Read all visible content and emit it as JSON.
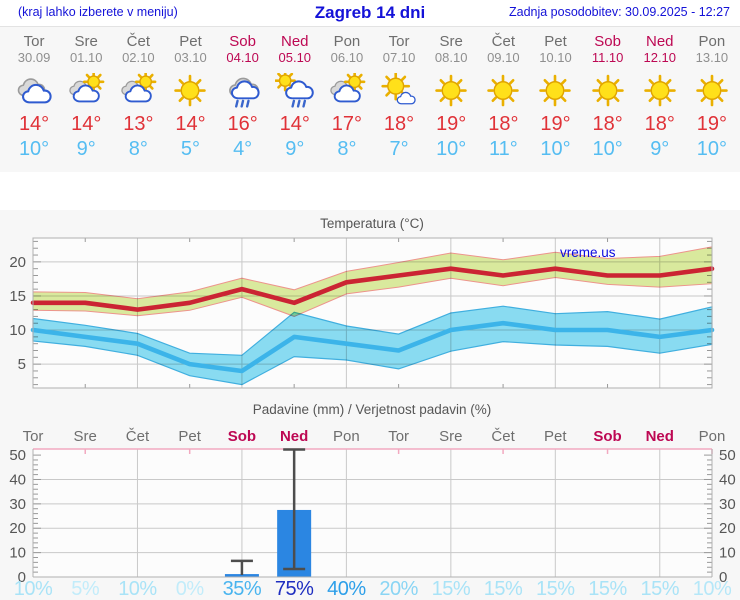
{
  "header": {
    "left_note": "(kraj lahko izberete v meniju)",
    "title": "Zagreb 14 dni",
    "updated": "Zadnja posodobitev: 30.09.2025 - 12:27"
  },
  "colors": {
    "header_blue": "#1412d8",
    "weekend": "#bd0853",
    "day_name": "#6e6e6e",
    "day_date": "#8f8f8f",
    "temp_max": "#e03238",
    "temp_min": "#55bdf2",
    "chart_text": "#565656",
    "grid": "#c9c9c9",
    "frame": "#b0b0b0",
    "tick": "#999999",
    "strip_bg": "#f7f7f7",
    "plot_bg": "#fcfcfc",
    "band_max_fill": "#dcec9f",
    "band_max_stroke": "#f0968e",
    "line_max": "#cb2433",
    "band_min_fill": "#8bdef4",
    "band_min_stroke": "#41b1e2",
    "line_min": "#3cb4e9",
    "precip_top": "#f2a9c0",
    "bar": "#2b86e2",
    "whisker": "#4d4d4d",
    "watermark_blue": "#0a0adf"
  },
  "forecast": {
    "days": [
      {
        "name": "Tor",
        "date": "30.09",
        "weekend": false,
        "icon": "cloudy",
        "tmax_label": "14°",
        "tmin_label": "10°"
      },
      {
        "name": "Sre",
        "date": "01.10",
        "weekend": false,
        "icon": "partly-cloudy",
        "tmax_label": "14°",
        "tmin_label": "9°"
      },
      {
        "name": "Čet",
        "date": "02.10",
        "weekend": false,
        "icon": "partly-cloudy",
        "tmax_label": "13°",
        "tmin_label": "8°"
      },
      {
        "name": "Pet",
        "date": "03.10",
        "weekend": false,
        "icon": "sunny",
        "tmax_label": "14°",
        "tmin_label": "5°"
      },
      {
        "name": "Sob",
        "date": "04.10",
        "weekend": true,
        "icon": "rain",
        "tmax_label": "16°",
        "tmin_label": "4°"
      },
      {
        "name": "Ned",
        "date": "05.10",
        "weekend": true,
        "icon": "sun-rain",
        "tmax_label": "14°",
        "tmin_label": "9°"
      },
      {
        "name": "Pon",
        "date": "06.10",
        "weekend": false,
        "icon": "partly-cloudy",
        "tmax_label": "17°",
        "tmin_label": "8°"
      },
      {
        "name": "Tor",
        "date": "07.10",
        "weekend": false,
        "icon": "mostly-sunny",
        "tmax_label": "18°",
        "tmin_label": "7°"
      },
      {
        "name": "Sre",
        "date": "08.10",
        "weekend": false,
        "icon": "sunny",
        "tmax_label": "19°",
        "tmin_label": "10°"
      },
      {
        "name": "Čet",
        "date": "09.10",
        "weekend": false,
        "icon": "sunny",
        "tmax_label": "18°",
        "tmin_label": "11°"
      },
      {
        "name": "Pet",
        "date": "10.10",
        "weekend": false,
        "icon": "sunny",
        "tmax_label": "19°",
        "tmin_label": "10°"
      },
      {
        "name": "Sob",
        "date": "11.10",
        "weekend": true,
        "icon": "sunny",
        "tmax_label": "18°",
        "tmin_label": "10°"
      },
      {
        "name": "Ned",
        "date": "12.10",
        "weekend": true,
        "icon": "sunny",
        "tmax_label": "18°",
        "tmin_label": "9°"
      },
      {
        "name": "Pon",
        "date": "13.10",
        "weekend": false,
        "icon": "sunny",
        "tmax_label": "19°",
        "tmin_label": "10°"
      }
    ]
  },
  "chart_data": [
    {
      "type": "line",
      "title": "Temperatura (°C)",
      "watermark": "vreme.us",
      "categories": [
        "Tor",
        "Sre",
        "Čet",
        "Pet",
        "Sob",
        "Ned",
        "Pon",
        "Tor",
        "Sre",
        "Čet",
        "Pet",
        "Sob",
        "Ned",
        "Pon"
      ],
      "ylim": [
        1.5,
        23.5
      ],
      "yticks": [
        5,
        10,
        15,
        20
      ],
      "grid": true,
      "series": [
        {
          "name": "max",
          "values": [
            14,
            14,
            13,
            14,
            16,
            14,
            17,
            18,
            19,
            18,
            19,
            18,
            18,
            19
          ]
        },
        {
          "name": "max_upper",
          "values": [
            15.6,
            15.5,
            14.6,
            15.6,
            17.6,
            15.9,
            18.6,
            19.9,
            21.3,
            20.3,
            21.4,
            20.5,
            20.8,
            22.2
          ]
        },
        {
          "name": "max_lower",
          "values": [
            12.9,
            12.8,
            12.1,
            12.9,
            14.8,
            12.0,
            15.3,
            16.3,
            17.6,
            16.5,
            17.7,
            16.7,
            16.3,
            16.8
          ]
        },
        {
          "name": "min",
          "values": [
            10,
            9,
            8,
            5,
            4,
            9,
            8,
            7,
            10,
            11,
            10,
            10,
            9,
            10
          ]
        },
        {
          "name": "min_upper",
          "values": [
            11.7,
            10.7,
            9.5,
            6.6,
            6.3,
            12.6,
            10.6,
            9.4,
            12.5,
            13.5,
            12.4,
            12.7,
            11.6,
            13.4
          ]
        },
        {
          "name": "min_lower",
          "values": [
            8.4,
            7.6,
            6.3,
            3.3,
            2.0,
            6.1,
            5.6,
            4.3,
            6.9,
            8.3,
            7.8,
            7.6,
            6.6,
            7.9
          ]
        }
      ]
    },
    {
      "type": "bar",
      "title": "Padavine (mm) / Verjetnost padavin (%)",
      "categories": [
        "Tor",
        "Sre",
        "Čet",
        "Pet",
        "Sob",
        "Ned",
        "Pon",
        "Tor",
        "Sre",
        "Čet",
        "Pet",
        "Sob",
        "Ned",
        "Pon"
      ],
      "weekend_indices": [
        4,
        5,
        11,
        12
      ],
      "values": [
        0,
        0,
        0,
        0,
        1.2,
        27.5,
        0,
        0,
        0,
        0,
        0,
        0,
        0,
        0
      ],
      "whisker_low": [
        null,
        null,
        null,
        null,
        null,
        3.3,
        null,
        null,
        null,
        null,
        null,
        null,
        null,
        null
      ],
      "whisker_high": [
        null,
        null,
        null,
        null,
        6.6,
        52.3,
        null,
        null,
        null,
        null,
        null,
        null,
        null,
        null
      ],
      "percents": [
        "10%",
        "5%",
        "10%",
        "0%",
        "35%",
        "75%",
        "40%",
        "20%",
        "15%",
        "15%",
        "15%",
        "15%",
        "15%",
        "10%"
      ],
      "percent_colors": [
        "#a9e3f7",
        "#c2ecfa",
        "#a9e3f7",
        "#c2ecfa",
        "#49b4ef",
        "#1e2ec0",
        "#2d9fe9",
        "#8ad5f4",
        "#a9e3f7",
        "#a9e3f7",
        "#a9e3f7",
        "#a9e3f7",
        "#a9e3f7",
        "#b5e7f8"
      ],
      "ylim": [
        0,
        52.5
      ],
      "yticks": [
        0,
        10,
        20,
        30,
        40,
        50
      ],
      "grid": true
    }
  ]
}
